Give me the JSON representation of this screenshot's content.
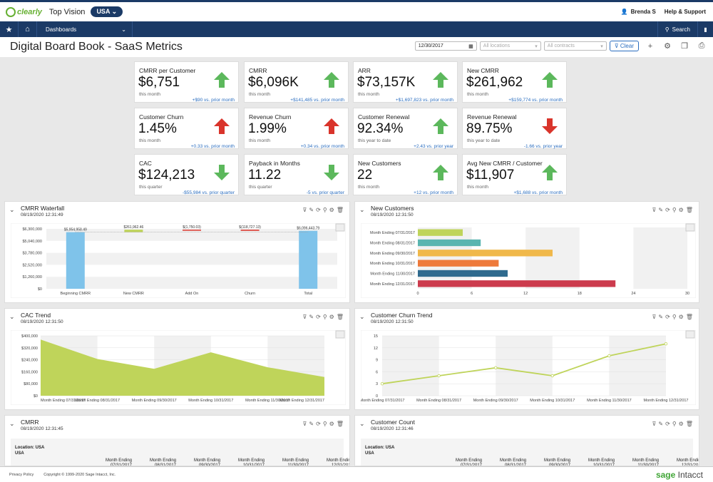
{
  "app": {
    "logo": "clearly",
    "company": "Top Vision",
    "entity": "USA",
    "user": "Brenda S",
    "help": "Help & Support"
  },
  "nav": {
    "dashboards": "Dashboards",
    "search": "Search"
  },
  "page": {
    "title": "Digital Board Book - SaaS Metrics",
    "date": "12/30/2017",
    "locations_placeholder": "All locations",
    "contracts_placeholder": "All contracts",
    "clear": "Clear"
  },
  "kpis": [
    {
      "label": "CMRR per Customer",
      "value": "$6,751",
      "period": "this month",
      "compare": "+$90 vs. prior month",
      "trend": "up-good"
    },
    {
      "label": "CMRR",
      "value": "$6,096K",
      "period": "this month",
      "compare": "+$141,485 vs. prior month",
      "trend": "up-good"
    },
    {
      "label": "ARR",
      "value": "$73,157K",
      "period": "this month",
      "compare": "+$1,697,823 vs. prior month",
      "trend": "up-good"
    },
    {
      "label": "New CMRR",
      "value": "$261,962",
      "period": "this month",
      "compare": "+$159,774 vs. prior month",
      "trend": "up-good"
    },
    {
      "label": "Customer Churn",
      "value": "1.45%",
      "period": "this month",
      "compare": "+0.33 vs. prior month",
      "trend": "up-bad"
    },
    {
      "label": "Revenue Churn",
      "value": "1.99%",
      "period": "this month",
      "compare": "+0.34 vs. prior month",
      "trend": "up-bad"
    },
    {
      "label": "Customer Renewal",
      "value": "92.34%",
      "period": "this year to date",
      "compare": "+2.43 vs. prior year",
      "trend": "up-good"
    },
    {
      "label": "Revenue Renewal",
      "value": "89.75%",
      "period": "this year to date",
      "compare": "-1.66 vs. prior year",
      "trend": "down-bad"
    },
    {
      "label": "CAC",
      "value": "$124,213",
      "period": "this quarter",
      "compare": "-$55,984 vs. prior quarter",
      "trend": "down-good"
    },
    {
      "label": "Payback in Months",
      "value": "11.22",
      "period": "this quarter",
      "compare": "-5 vs. prior quarter",
      "trend": "down-good"
    },
    {
      "label": "New Customers",
      "value": "22",
      "period": "this month",
      "compare": "+12 vs. prior month",
      "trend": "up-good"
    },
    {
      "label": "Avg New CMRR / Customer",
      "value": "$11,907",
      "period": "this month",
      "compare": "+$1,688 vs. prior month",
      "trend": "up-good"
    }
  ],
  "colors": {
    "navy": "#1b3a66",
    "up": "#5cb85c",
    "down": "#d9342b",
    "link": "#2a6dbf",
    "bar_blue": "#7fc3ea",
    "area": "#bfd45a",
    "line": "#bfd45a"
  },
  "panels": {
    "waterfall": {
      "title": "CMRR Waterfall",
      "date": "08/19/2020 12:31:49"
    },
    "newcust": {
      "title": "New Customers",
      "date": "08/19/2020 12:31:50"
    },
    "cac": {
      "title": "CAC Trend",
      "date": "08/19/2020 12:31:50"
    },
    "churn": {
      "title": "Customer Churn Trend",
      "date": "08/19/2020 12:31:50"
    },
    "cmrr": {
      "title": "CMRR",
      "date": "08/19/2020 12:31:45",
      "location_label": "Location: USA",
      "location_value": "USA",
      "header": "Month Ending"
    },
    "custcount": {
      "title": "Customer Count",
      "date": "08/19/2020 12:31:46",
      "location_label": "Location: USA",
      "location_value": "USA",
      "header": "Month Ending"
    }
  },
  "chart_data": [
    {
      "type": "bar",
      "title": "CMRR Waterfall",
      "categories": [
        "Beginning CMRR",
        "New CMRR",
        "Add On",
        "Churn",
        "Total"
      ],
      "values": [
        5954958.49,
        261962.46,
        -1750.03,
        -118727.13,
        6096443.79
      ],
      "data_labels": [
        "$5,954,958.49",
        "$261,962.46",
        "$(1,750.03)",
        "$(118,727.13)",
        "$6,096,443.79"
      ],
      "ylim": [
        0,
        6300000
      ],
      "yticks": [
        "$0",
        "$1,260,000",
        "$2,520,000",
        "$3,780,000",
        "$5,040,000",
        "$6,300,000"
      ]
    },
    {
      "type": "bar",
      "orientation": "horizontal",
      "title": "New Customers",
      "categories": [
        "Month Ending 07/31/2017",
        "Month Ending 08/31/2017",
        "Month Ending 09/30/2017",
        "Month Ending 10/31/2017",
        "Month Ending 11/30/2017",
        "Month Ending 12/31/2017"
      ],
      "values": [
        5,
        7,
        15,
        9,
        10,
        22
      ],
      "colors": [
        "#bfd45a",
        "#5ab5b0",
        "#f0b84a",
        "#ee7a3b",
        "#2f6a8e",
        "#cc3b4d"
      ],
      "xlim": [
        0,
        30
      ],
      "xticks": [
        "0",
        "6",
        "12",
        "18",
        "24",
        "30"
      ]
    },
    {
      "type": "area",
      "title": "CAC Trend",
      "categories": [
        "Month Ending 07/31/2017",
        "Month Ending 08/31/2017",
        "Month Ending 09/30/2017",
        "Month Ending 10/31/2017",
        "Month Ending 11/30/2017",
        "Month Ending 12/31/2017"
      ],
      "values": [
        375000,
        245000,
        180000,
        290000,
        190000,
        125000
      ],
      "ylim": [
        0,
        400000
      ],
      "yticks": [
        "$0",
        "$80,000",
        "$160,000",
        "$240,000",
        "$320,000",
        "$400,000"
      ]
    },
    {
      "type": "line",
      "title": "Customer Churn Trend",
      "categories": [
        "Month Ending 07/31/2017",
        "Month Ending 08/31/2017",
        "Month Ending 09/30/2017",
        "Month Ending 10/31/2017",
        "Month Ending 11/30/2017",
        "Month Ending 12/31/2017"
      ],
      "values": [
        3,
        5,
        7,
        5,
        10,
        13
      ],
      "ylim": [
        0,
        15
      ],
      "yticks": [
        "0",
        "3",
        "6",
        "9",
        "12",
        "15"
      ]
    }
  ],
  "tables": {
    "cmrr_cols": [
      "Month Ending 07/31/2017",
      "Month Ending 08/31/2017",
      "Month Ending 09/30/2017",
      "Month Ending 10/31/2017",
      "Month Ending 11/30/2017",
      "Month Ending 12/31/2017"
    ],
    "count_cols": [
      "Month Ending 07/31/2017",
      "Month Ending 08/31/2017",
      "Month Ending 09/30/2017",
      "Month Ending 10/31/2017",
      "Month Ending 11/30/2017",
      "Month Ending 12/31/2017"
    ]
  },
  "footer": {
    "privacy": "Privacy Policy",
    "copyright": "Copyright © 1999-2020 Sage Intacct, Inc.",
    "brand1": "sage",
    "brand2": " Intacct"
  }
}
